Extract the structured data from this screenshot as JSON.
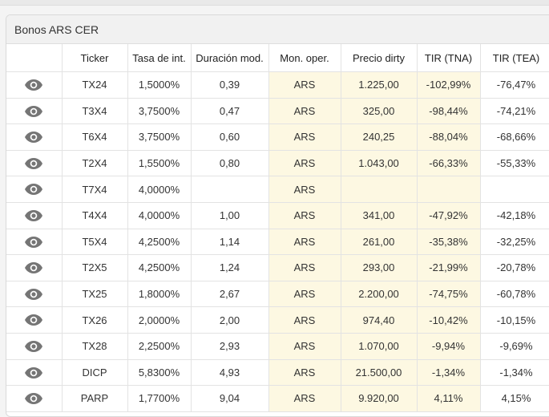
{
  "panel": {
    "title": "Bonos ARS CER"
  },
  "table": {
    "headers": [
      "",
      "Ticker",
      "Tasa de int.",
      "Duración mod.",
      "Mon. oper.",
      "Precio dirty",
      "TIR (TNA)",
      "TIR (TEA)"
    ],
    "rows": [
      [
        "TX24",
        "1,5000%",
        "0,39",
        "ARS",
        "1.225,00",
        "-102,99%",
        "-76,47%"
      ],
      [
        "T3X4",
        "3,7500%",
        "0,47",
        "ARS",
        "325,00",
        "-98,44%",
        "-74,21%"
      ],
      [
        "T6X4",
        "3,7500%",
        "0,60",
        "ARS",
        "240,25",
        "-88,04%",
        "-68,66%"
      ],
      [
        "T2X4",
        "1,5500%",
        "0,80",
        "ARS",
        "1.043,00",
        "-66,33%",
        "-55,33%"
      ],
      [
        "T7X4",
        "4,0000%",
        "",
        "ARS",
        "",
        "",
        ""
      ],
      [
        "T4X4",
        "4,0000%",
        "1,00",
        "ARS",
        "341,00",
        "-47,92%",
        "-42,18%"
      ],
      [
        "T5X4",
        "4,2500%",
        "1,14",
        "ARS",
        "261,00",
        "-35,38%",
        "-32,25%"
      ],
      [
        "T2X5",
        "4,2500%",
        "1,24",
        "ARS",
        "293,00",
        "-21,99%",
        "-20,78%"
      ],
      [
        "TX25",
        "1,8000%",
        "2,67",
        "ARS",
        "2.200,00",
        "-74,75%",
        "-60,78%"
      ],
      [
        "TX26",
        "2,0000%",
        "2,00",
        "ARS",
        "974,40",
        "-10,42%",
        "-10,15%"
      ],
      [
        "TX28",
        "2,2500%",
        "2,93",
        "ARS",
        "1.070,00",
        "-9,94%",
        "-9,69%"
      ],
      [
        "DICP",
        "5,8300%",
        "4,93",
        "ARS",
        "21.500,00",
        "-1,34%",
        "-1,34%"
      ],
      [
        "PARP",
        "1,7700%",
        "9,04",
        "ARS",
        "9.920,00",
        "4,11%",
        "4,15%"
      ]
    ],
    "row_icon": "eye-icon",
    "highlight_color": "#fdf8e2"
  }
}
